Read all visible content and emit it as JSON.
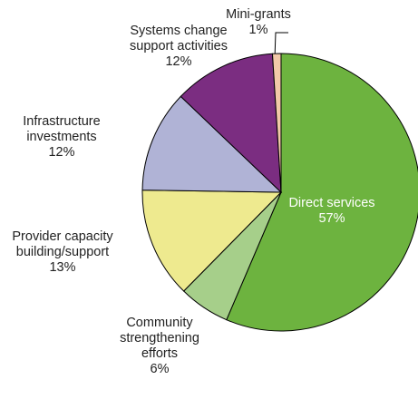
{
  "chart_data": {
    "type": "pie",
    "title": "",
    "start_angle_deg": 0,
    "direction": "clockwise",
    "slices": [
      {
        "label_lines": [
          "Direct services"
        ],
        "value": 57,
        "value_label": "57%",
        "color": "#6db33f",
        "label_color": "#ffffff"
      },
      {
        "label_lines": [
          "Community",
          "strengthening",
          "efforts"
        ],
        "value": 6,
        "value_label": "6%",
        "color": "#a6cf8a",
        "label_color": "#222222"
      },
      {
        "label_lines": [
          "Provider capacity",
          "building/support"
        ],
        "value": 13,
        "value_label": "13%",
        "color": "#eeea8f",
        "label_color": "#222222"
      },
      {
        "label_lines": [
          "Infrastructure",
          "investments"
        ],
        "value": 12,
        "value_label": "12%",
        "color": "#b0b3d6",
        "label_color": "#222222"
      },
      {
        "label_lines": [
          "Systems change",
          "support activities"
        ],
        "value": 12,
        "value_label": "12%",
        "color": "#7b2d81",
        "label_color": "#222222"
      },
      {
        "label_lines": [
          "Mini-grants"
        ],
        "value": 1,
        "value_label": "1%",
        "color": "#f2c9a8",
        "label_color": "#222222"
      }
    ]
  }
}
